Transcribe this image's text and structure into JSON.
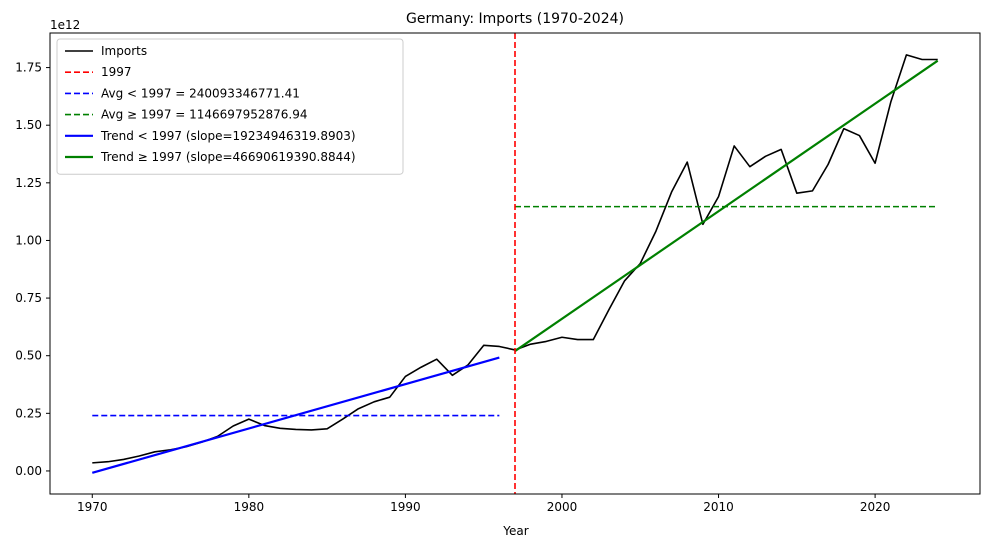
{
  "chart_data": {
    "type": "line",
    "title": "Germany: Imports (1970-2024)",
    "xlabel": "Year",
    "ylabel": "",
    "y_scale_label": "1e12",
    "xlim": [
      1967.3,
      2026.7
    ],
    "ylim": [
      -0.1,
      1.9
    ],
    "x_ticks": [
      1970,
      1980,
      1990,
      2000,
      2010,
      2020
    ],
    "y_ticks": [
      0.0,
      0.25,
      0.5,
      0.75,
      1.0,
      1.25,
      1.5,
      1.75
    ],
    "y_tick_labels": [
      "0.00",
      "0.25",
      "0.50",
      "0.75",
      "1.00",
      "1.25",
      "1.50",
      "1.75"
    ],
    "legend_position": "upper-left",
    "series": [
      {
        "name": "Imports",
        "kind": "line",
        "color": "#000000",
        "style": "solid",
        "width": 1.6,
        "x": [
          1970,
          1971,
          1972,
          1973,
          1974,
          1975,
          1976,
          1977,
          1978,
          1979,
          1980,
          1981,
          1982,
          1983,
          1984,
          1985,
          1986,
          1987,
          1988,
          1989,
          1990,
          1991,
          1992,
          1993,
          1994,
          1995,
          1996,
          1997,
          1998,
          1999,
          2000,
          2001,
          2002,
          2003,
          2004,
          2005,
          2006,
          2007,
          2008,
          2009,
          2010,
          2011,
          2012,
          2013,
          2014,
          2015,
          2016,
          2017,
          2018,
          2019,
          2020,
          2021,
          2022,
          2023,
          2024
        ],
        "values": [
          0.035,
          0.04,
          0.05,
          0.065,
          0.083,
          0.092,
          0.105,
          0.125,
          0.15,
          0.195,
          0.225,
          0.197,
          0.185,
          0.18,
          0.178,
          0.183,
          0.225,
          0.27,
          0.3,
          0.32,
          0.41,
          0.45,
          0.485,
          0.415,
          0.46,
          0.545,
          0.54,
          0.525,
          0.55,
          0.562,
          0.58,
          0.57,
          0.57,
          0.7,
          0.825,
          0.9,
          1.04,
          1.21,
          1.34,
          1.07,
          1.19,
          1.41,
          1.32,
          1.365,
          1.395,
          1.205,
          1.215,
          1.33,
          1.485,
          1.455,
          1.335,
          1.6,
          1.805,
          1.785,
          1.785
        ]
      },
      {
        "name": "Trend < 1997 (slope=19234946319.8903)",
        "kind": "line",
        "color": "#0000ff",
        "style": "solid",
        "width": 2.2,
        "x": [
          1970,
          1996
        ],
        "values": [
          -0.008,
          0.492
        ]
      },
      {
        "name": "Trend ≥ 1997 (slope=46690619390.8844)",
        "kind": "line",
        "color": "#008000",
        "style": "solid",
        "width": 2.2,
        "x": [
          1997,
          2024
        ],
        "values": [
          0.52,
          1.78
        ]
      }
    ],
    "hlines": [
      {
        "name": "Avg < 1997 = 240093346771.41",
        "value": 0.2401,
        "x": [
          1970,
          1996
        ],
        "color": "#0000ff",
        "style": "dashed"
      },
      {
        "name": "Avg ≥ 1997 = 1146697952876.94",
        "value": 1.1467,
        "x": [
          1997,
          2024
        ],
        "color": "#008000",
        "style": "dashed"
      }
    ],
    "vlines": [
      {
        "name": "1997",
        "value": 1997,
        "color": "#ff0000",
        "style": "dashed"
      }
    ],
    "legend": [
      {
        "label": "Imports",
        "color": "#000000",
        "style": "solid",
        "width": 1.6
      },
      {
        "label": "1997",
        "color": "#ff0000",
        "style": "dashed",
        "width": 1.6
      },
      {
        "label": "Avg < 1997 = 240093346771.41",
        "color": "#0000ff",
        "style": "dashed",
        "width": 1.6
      },
      {
        "label": "Avg ≥ 1997 = 1146697952876.94",
        "color": "#008000",
        "style": "dashed",
        "width": 1.6
      },
      {
        "label": "Trend < 1997 (slope=19234946319.8903)",
        "color": "#0000ff",
        "style": "solid",
        "width": 2.2
      },
      {
        "label": "Trend ≥ 1997 (slope=46690619390.8844)",
        "color": "#008000",
        "style": "solid",
        "width": 2.2
      }
    ]
  }
}
